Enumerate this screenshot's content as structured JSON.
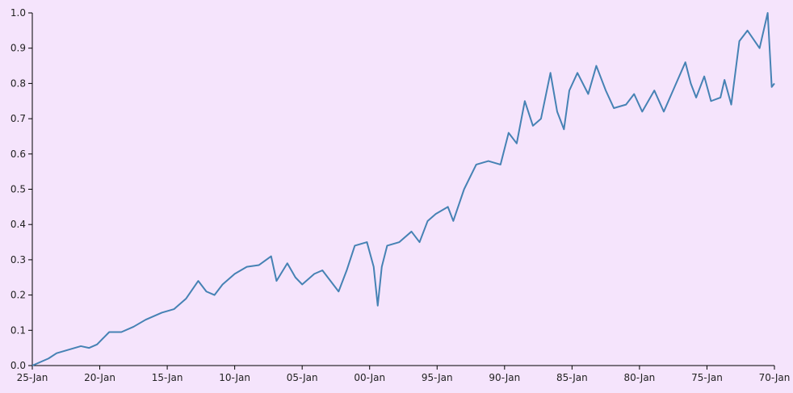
{
  "chart_data": {
    "type": "line",
    "x": [
      0,
      0.6,
      1.2,
      1.8,
      2.7,
      3.6,
      4.2,
      4.8,
      5.7,
      6.6,
      7.5,
      8.4,
      9.6,
      10.5,
      11.4,
      12.3,
      12.9,
      13.5,
      14.1,
      15.0,
      15.9,
      16.8,
      17.7,
      18.1,
      18.9,
      19.5,
      20.0,
      20.9,
      21.5,
      22.1,
      22.7,
      23.3,
      23.9,
      24.8,
      25.3,
      25.6,
      25.9,
      26.3,
      27.2,
      28.1,
      28.7,
      29.3,
      29.9,
      30.8,
      31.2,
      32.0,
      32.9,
      33.8,
      34.7,
      35.3,
      35.9,
      36.5,
      37.1,
      37.7,
      38.4,
      38.9,
      39.4,
      39.8,
      40.4,
      41.2,
      41.8,
      42.5,
      43.1,
      44.0,
      44.6,
      45.2,
      46.1,
      46.8,
      47.6,
      48.4,
      48.8,
      49.2,
      49.8,
      50.3,
      51.0,
      51.3,
      51.8,
      52.4,
      53.0,
      53.9,
      54.5,
      54.8,
      55.0
    ],
    "series": [
      {
        "color": "#4682b4",
        "values": [
          0,
          0.01,
          0.02,
          0.035,
          0.045,
          0.055,
          0.05,
          0.06,
          0.095,
          0.095,
          0.11,
          0.13,
          0.15,
          0.16,
          0.19,
          0.24,
          0.21,
          0.2,
          0.23,
          0.26,
          0.28,
          0.285,
          0.31,
          0.24,
          0.29,
          0.25,
          0.23,
          0.26,
          0.27,
          0.24,
          0.21,
          0.27,
          0.34,
          0.35,
          0.28,
          0.17,
          0.28,
          0.34,
          0.35,
          0.38,
          0.35,
          0.41,
          0.43,
          0.45,
          0.41,
          0.5,
          0.57,
          0.58,
          0.57,
          0.66,
          0.63,
          0.75,
          0.68,
          0.7,
          0.83,
          0.72,
          0.67,
          0.78,
          0.83,
          0.77,
          0.85,
          0.78,
          0.73,
          0.74,
          0.77,
          0.72,
          0.78,
          0.72,
          0.79,
          0.86,
          0.8,
          0.76,
          0.82,
          0.75,
          0.76,
          0.81,
          0.74,
          0.92,
          0.95,
          0.9,
          1.0,
          0.79,
          0.8
        ]
      }
    ],
    "xlim": [
      0,
      55
    ],
    "xticks": [
      {
        "value": 0,
        "label": "25-Jan"
      },
      {
        "value": 5,
        "label": "20-Jan"
      },
      {
        "value": 10,
        "label": "15-Jan"
      },
      {
        "value": 15,
        "label": "10-Jan"
      },
      {
        "value": 20,
        "label": "05-Jan"
      },
      {
        "value": 25,
        "label": "00-Jan"
      },
      {
        "value": 30,
        "label": "95-Jan"
      },
      {
        "value": 35,
        "label": "90-Jan"
      },
      {
        "value": 40,
        "label": "85-Jan"
      },
      {
        "value": 45,
        "label": "80-Jan"
      },
      {
        "value": 50,
        "label": "75-Jan"
      },
      {
        "value": 55,
        "label": "70-Jan"
      }
    ],
    "ylim": [
      0,
      1
    ],
    "yticks": [
      {
        "value": 0,
        "label": "0.0"
      },
      0.1,
      0.2,
      0.3,
      0.4,
      0.5,
      0.6,
      0.7,
      0.8,
      0.9,
      {
        "value": 1,
        "label": "1.0"
      }
    ]
  }
}
